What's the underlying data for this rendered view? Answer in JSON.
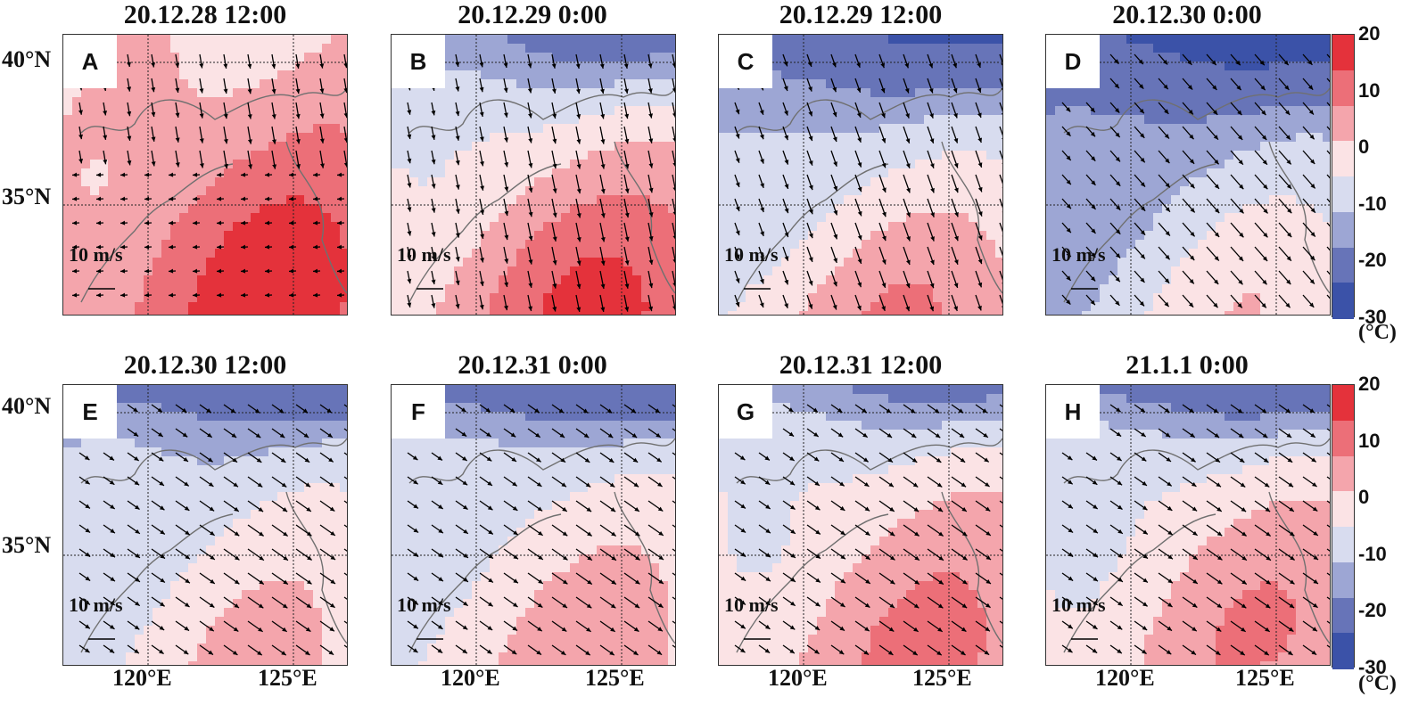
{
  "panels": [
    {
      "letter": "A",
      "title": "20.12.28 12:00"
    },
    {
      "letter": "B",
      "title": "20.12.29 0:00"
    },
    {
      "letter": "C",
      "title": "20.12.29 12:00"
    },
    {
      "letter": "D",
      "title": "20.12.30 0:00"
    },
    {
      "letter": "E",
      "title": "20.12.30 12:00"
    },
    {
      "letter": "F",
      "title": "20.12.31 0:00"
    },
    {
      "letter": "G",
      "title": "20.12.31 12:00"
    },
    {
      "letter": "H",
      "title": "21.1.1 0:00"
    }
  ],
  "scale_label": "10 m/s",
  "lat_labels": [
    "40°N",
    "35°N"
  ],
  "lon_labels": [
    "120°E",
    "125°E"
  ],
  "colorbar": {
    "ticks": [
      "20",
      "10",
      "0",
      "-10",
      "-20",
      "-30"
    ],
    "unit": "(°C)",
    "min": -30,
    "max": 20,
    "colors": [
      "#3b52a8",
      "#6774b8",
      "#9da6d4",
      "#d8dcef",
      "#fbe3e5",
      "#f4a5ac",
      "#ec6f78",
      "#e4323b"
    ]
  },
  "colors": {
    "land_outline": "#707070",
    "grid": "#222222",
    "arrow": "#000000"
  }
}
